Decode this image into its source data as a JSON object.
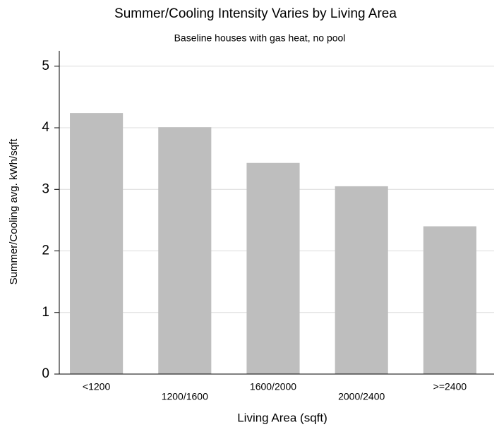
{
  "chart_data": {
    "type": "bar",
    "title": "Summer/Cooling Intensity Varies by Living Area",
    "subtitle": "Baseline houses with gas heat, no pool",
    "x_label": "Living Area (sqft)",
    "y_label": "Summer/Cooling avg. kWh/sqft",
    "categories": [
      "<1200",
      "1200/1600",
      "1600/2000",
      "2000/2400",
      ">=2400"
    ],
    "values": [
      4.24,
      4.01,
      3.43,
      3.05,
      2.4
    ],
    "color": "#bebebe",
    "ylim": [
      0,
      5.25
    ],
    "yticks": [
      0,
      1,
      2,
      3,
      4,
      5
    ],
    "grid": true
  }
}
